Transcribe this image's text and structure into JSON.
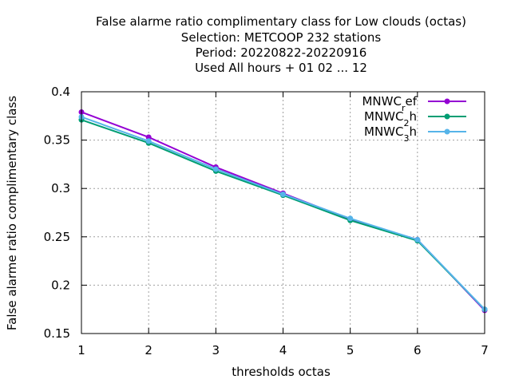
{
  "chart_data": {
    "type": "line",
    "title_lines": [
      "False alarme ratio complimentary class  for Low clouds (octas)",
      "Selection: METCOOP    232 stations",
      "Period: 20220822-20220916",
      "Used  All hours + 01 02 ... 12"
    ],
    "xlabel": "thresholds octas",
    "ylabel": "False alarme ratio complimentary class",
    "x": [
      1,
      2,
      3,
      4,
      5,
      6,
      7
    ],
    "xlim": [
      1,
      7
    ],
    "ylim": [
      0.15,
      0.4
    ],
    "xticks": [
      "1",
      "2",
      "3",
      "4",
      "5",
      "6",
      "7"
    ],
    "yticks": [
      "0.15",
      "0.2",
      "0.25",
      "0.3",
      "0.35",
      "0.4"
    ],
    "grid": true,
    "legend_position": "top-right",
    "series": [
      {
        "name": "MNWC_ref",
        "legend": {
          "base": "MNWC",
          "sub": "r",
          "tail": "ef"
        },
        "color": "#9400d3",
        "marker": "filled-circle",
        "values": [
          0.379,
          0.353,
          0.322,
          0.295,
          0.268,
          0.247,
          0.174
        ]
      },
      {
        "name": "MNWC_2h",
        "legend": {
          "base": "MNWC",
          "sub": "2",
          "tail": "h"
        },
        "color": "#009e73",
        "marker": "filled-circle",
        "values": [
          0.371,
          0.347,
          0.318,
          0.293,
          0.267,
          0.246,
          0.175
        ]
      },
      {
        "name": "MNWC_3h",
        "legend": {
          "base": "MNWC",
          "sub": "3",
          "tail": "h"
        },
        "color": "#56b4e9",
        "marker": "filled-circle",
        "values": [
          0.374,
          0.349,
          0.32,
          0.294,
          0.269,
          0.247,
          0.175
        ]
      }
    ]
  }
}
